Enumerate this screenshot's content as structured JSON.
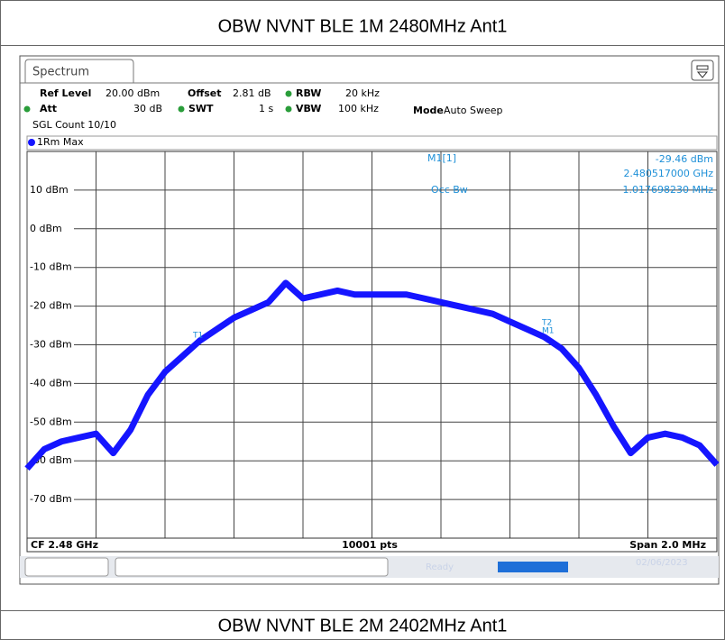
{
  "title": "OBW NVNT BLE 1M 2480MHz Ant1",
  "next_title": "OBW NVNT BLE 2M 2402MHz Ant1",
  "screen": {
    "tab": "Spectrum",
    "ref_level_label": "Ref Level",
    "ref_level": "20.00 dBm",
    "offset_label": "Offset",
    "offset": "2.81 dB",
    "rbw_label": "RBW",
    "rbw": "20 kHz",
    "att_label": "Att",
    "att": "30 dB",
    "swt_label": "SWT",
    "swt": "1 s",
    "vbw_label": "VBW",
    "vbw": "100 kHz",
    "mode_label": "Mode",
    "mode": "Auto Sweep",
    "count": "SGL Count 10/10",
    "marker_name": "M1[1]",
    "marker_level": "-29.46 dBm",
    "marker_freq": "2.480517000 GHz",
    "occ_label": "Occ Bw",
    "occ_value": "1.017698230 MHz",
    "markers": [
      "T1",
      "T2",
      "M1"
    ],
    "cf": "CF 2.48 GHz",
    "points": "10001 pts",
    "span": "Span 2.0 MHz",
    "status": "Ready",
    "date": "02/06/2023"
  },
  "chart_data": {
    "type": "line",
    "x": [
      2479.0,
      2479.05,
      2479.1,
      2479.15,
      2479.2,
      2479.25,
      2479.3,
      2479.35,
      2479.4,
      2479.45,
      2479.5,
      2479.55,
      2479.6,
      2479.65,
      2479.7,
      2479.75,
      2479.8,
      2479.85,
      2479.9,
      2479.95,
      2480.0,
      2480.05,
      2480.1,
      2480.15,
      2480.2,
      2480.25,
      2480.3,
      2480.35,
      2480.4,
      2480.45,
      2480.5,
      2480.55,
      2480.6,
      2480.65,
      2480.7,
      2480.75,
      2480.8,
      2480.85,
      2480.9,
      2480.95,
      2481.0
    ],
    "series": [
      {
        "name": "1Rm Max",
        "color": "#1515ff",
        "values": [
          -62,
          -57,
          -55,
          -54,
          -53,
          -58,
          -52,
          -43,
          -37,
          -33,
          -29,
          -26,
          -23,
          -21,
          -19,
          -14,
          -18,
          -17,
          -16,
          -17,
          -17,
          -17,
          -17,
          -18,
          -19,
          -20,
          -21,
          -22,
          -24,
          -26,
          -28,
          -31,
          -36,
          -43,
          -51,
          -58,
          -54,
          -53,
          -54,
          -56,
          -61
        ]
      }
    ],
    "xlim": [
      2479,
      2481
    ],
    "xticks": [
      2479,
      2479.2,
      2479.4,
      2479.6,
      2479.8,
      2480,
      2480.2,
      2480.4,
      2480.6,
      2480.8,
      2481
    ],
    "ylim": [
      -80,
      20
    ],
    "yticks": [
      {
        "value": 10,
        "label": "10 dBm"
      },
      {
        "value": 0,
        "label": "0 dBm"
      },
      {
        "value": -10,
        "label": "-10 dBm"
      },
      {
        "value": -20,
        "label": "-20 dBm"
      },
      {
        "value": -30,
        "label": "-30 dBm"
      },
      {
        "value": -40,
        "label": "-40 dBm"
      },
      {
        "value": -50,
        "label": "-50 dBm"
      },
      {
        "value": -60,
        "label": "-60 dBm"
      },
      {
        "value": -70,
        "label": "-70 dBm"
      }
    ],
    "grid": true
  }
}
